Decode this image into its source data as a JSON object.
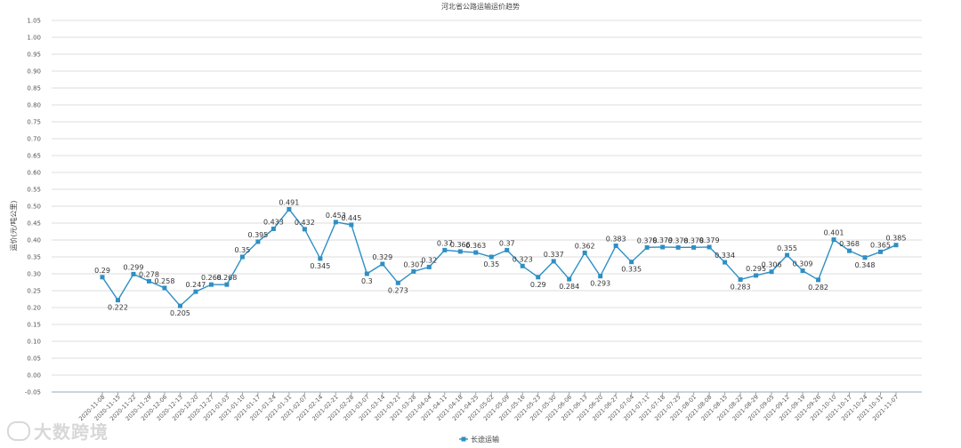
{
  "chart_data": {
    "type": "line",
    "title": "河北省公路运输运价趋势",
    "ylabel": "运价(元/吨公里)",
    "xlabel": "",
    "ylim": [
      -0.05,
      1.05
    ],
    "yticks": [
      -0.05,
      0.0,
      0.05,
      0.1,
      0.15,
      0.2,
      0.25,
      0.3,
      0.35,
      0.4,
      0.45,
      0.5,
      0.55,
      0.6,
      0.65,
      0.7,
      0.75,
      0.8,
      0.85,
      0.9,
      0.95,
      1.0,
      1.05
    ],
    "grid": true,
    "legend_position": "bottom",
    "x": [
      "2020-11-08",
      "2020-11-15",
      "2020-11-22",
      "2020-11-29",
      "2020-12-06",
      "2020-12-13",
      "2020-12-20",
      "2020-12-27",
      "2021-01-03",
      "2021-01-10",
      "2021-01-17",
      "2021-01-24",
      "2021-01-31",
      "2021-02-07",
      "2021-02-14",
      "2021-02-21",
      "2021-02-28",
      "2021-03-07",
      "2021-03-14",
      "2021-03-21",
      "2021-03-28",
      "2021-04-04",
      "2021-04-11",
      "2021-04-18",
      "2021-04-25",
      "2021-05-02",
      "2021-05-09",
      "2021-05-16",
      "2021-05-23",
      "2021-05-30",
      "2021-06-06",
      "2021-06-13",
      "2021-06-20",
      "2021-06-27",
      "2021-07-04",
      "2021-07-11",
      "2021-07-18",
      "2021-07-25",
      "2021-08-01",
      "2021-08-08",
      "2021-08-15",
      "2021-08-22",
      "2021-08-29",
      "2021-09-05",
      "2021-09-12",
      "2021-09-19",
      "2021-09-26",
      "2021-10-10",
      "2021-10-17",
      "2021-10-24",
      "2021-10-31",
      "2021-11-07"
    ],
    "series": [
      {
        "name": "长途运输",
        "color": "#2e8fc4",
        "values": [
          0.29,
          0.222,
          0.299,
          0.278,
          0.258,
          0.205,
          0.247,
          0.268,
          0.268,
          0.35,
          0.395,
          0.433,
          0.491,
          0.432,
          0.345,
          0.453,
          0.445,
          0.3,
          0.329,
          0.273,
          0.307,
          0.32,
          0.37,
          0.366,
          0.363,
          0.35,
          0.37,
          0.323,
          0.29,
          0.337,
          0.284,
          0.362,
          0.293,
          0.383,
          0.335,
          0.378,
          0.379,
          0.378,
          0.378,
          0.379,
          0.334,
          0.283,
          0.295,
          0.306,
          0.355,
          0.309,
          0.282,
          0.401,
          0.368,
          0.348,
          0.365,
          0.385
        ],
        "labels": [
          "0.29",
          "0.222",
          "0.299",
          "0.278",
          "0.258",
          "0.205",
          "0.247",
          "0.268",
          "0.268",
          "0.35",
          "0.395",
          "0.433",
          "0.491",
          "0.432",
          "0.345",
          "0.453",
          "0.445",
          "0.3",
          "0.329",
          "0.273",
          "0.307",
          "0.32",
          "0.37",
          "0.366",
          "0.363",
          "0.35",
          "0.37",
          "0.323",
          "0.29",
          "0.337",
          "0.284",
          "0.362",
          "0.293",
          "0.383",
          "0.335",
          "0.378",
          "0.379",
          "0.378",
          "0.378",
          "0.379",
          "0.334",
          "0.283",
          "0.295",
          "0.306",
          "0.355",
          "0.309",
          "0.282",
          "0.401",
          "0.368",
          "0.348",
          "0.365",
          "0.385"
        ]
      }
    ]
  },
  "watermark": "大数跨境"
}
